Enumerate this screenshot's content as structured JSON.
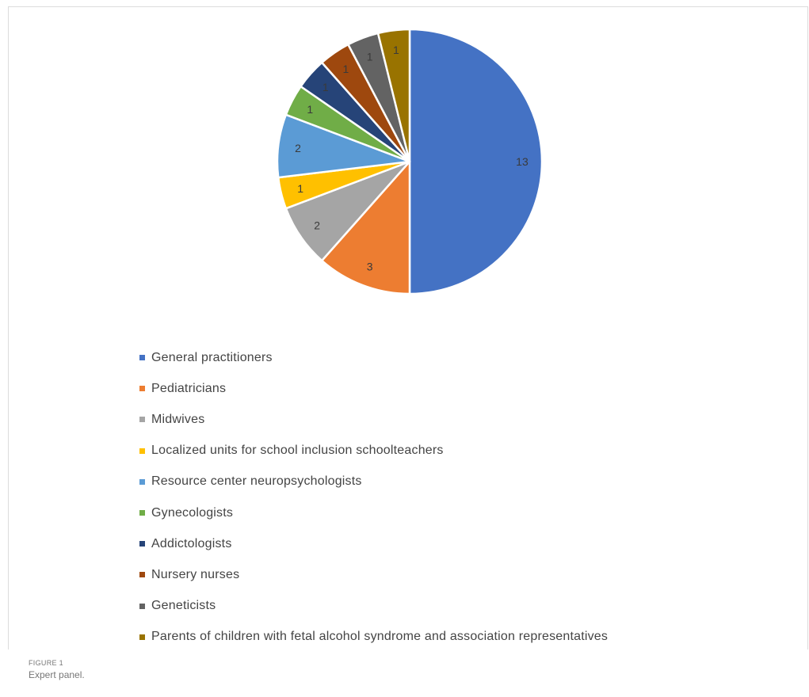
{
  "chart_data": {
    "type": "pie",
    "categories": [
      "General practitioners",
      "Pediatricians",
      "Midwives",
      "Localized units for school inclusion schoolteachers",
      "Resource center neuropsychologists",
      "Gynecologists",
      "Addictologists",
      "Nursery nurses",
      "Geneticists",
      "Parents of children with fetal alcohol syndrome and association representatives"
    ],
    "values": [
      13,
      3,
      2,
      1,
      2,
      1,
      1,
      1,
      1,
      1
    ],
    "colors": [
      "#4472c4",
      "#ed7d31",
      "#a5a5a5",
      "#ffc000",
      "#5b9bd5",
      "#70ad47",
      "#264478",
      "#9e480e",
      "#636363",
      "#997300"
    ],
    "data_labels": [
      "13",
      "3",
      "2",
      "1",
      "2",
      "1",
      "1",
      "1",
      "1",
      "1"
    ],
    "start_angle_deg": 0,
    "direction": "clockwise",
    "legend_position": "bottom"
  },
  "caption": {
    "figure_label": "FIGURE 1",
    "title": "Expert panel."
  }
}
